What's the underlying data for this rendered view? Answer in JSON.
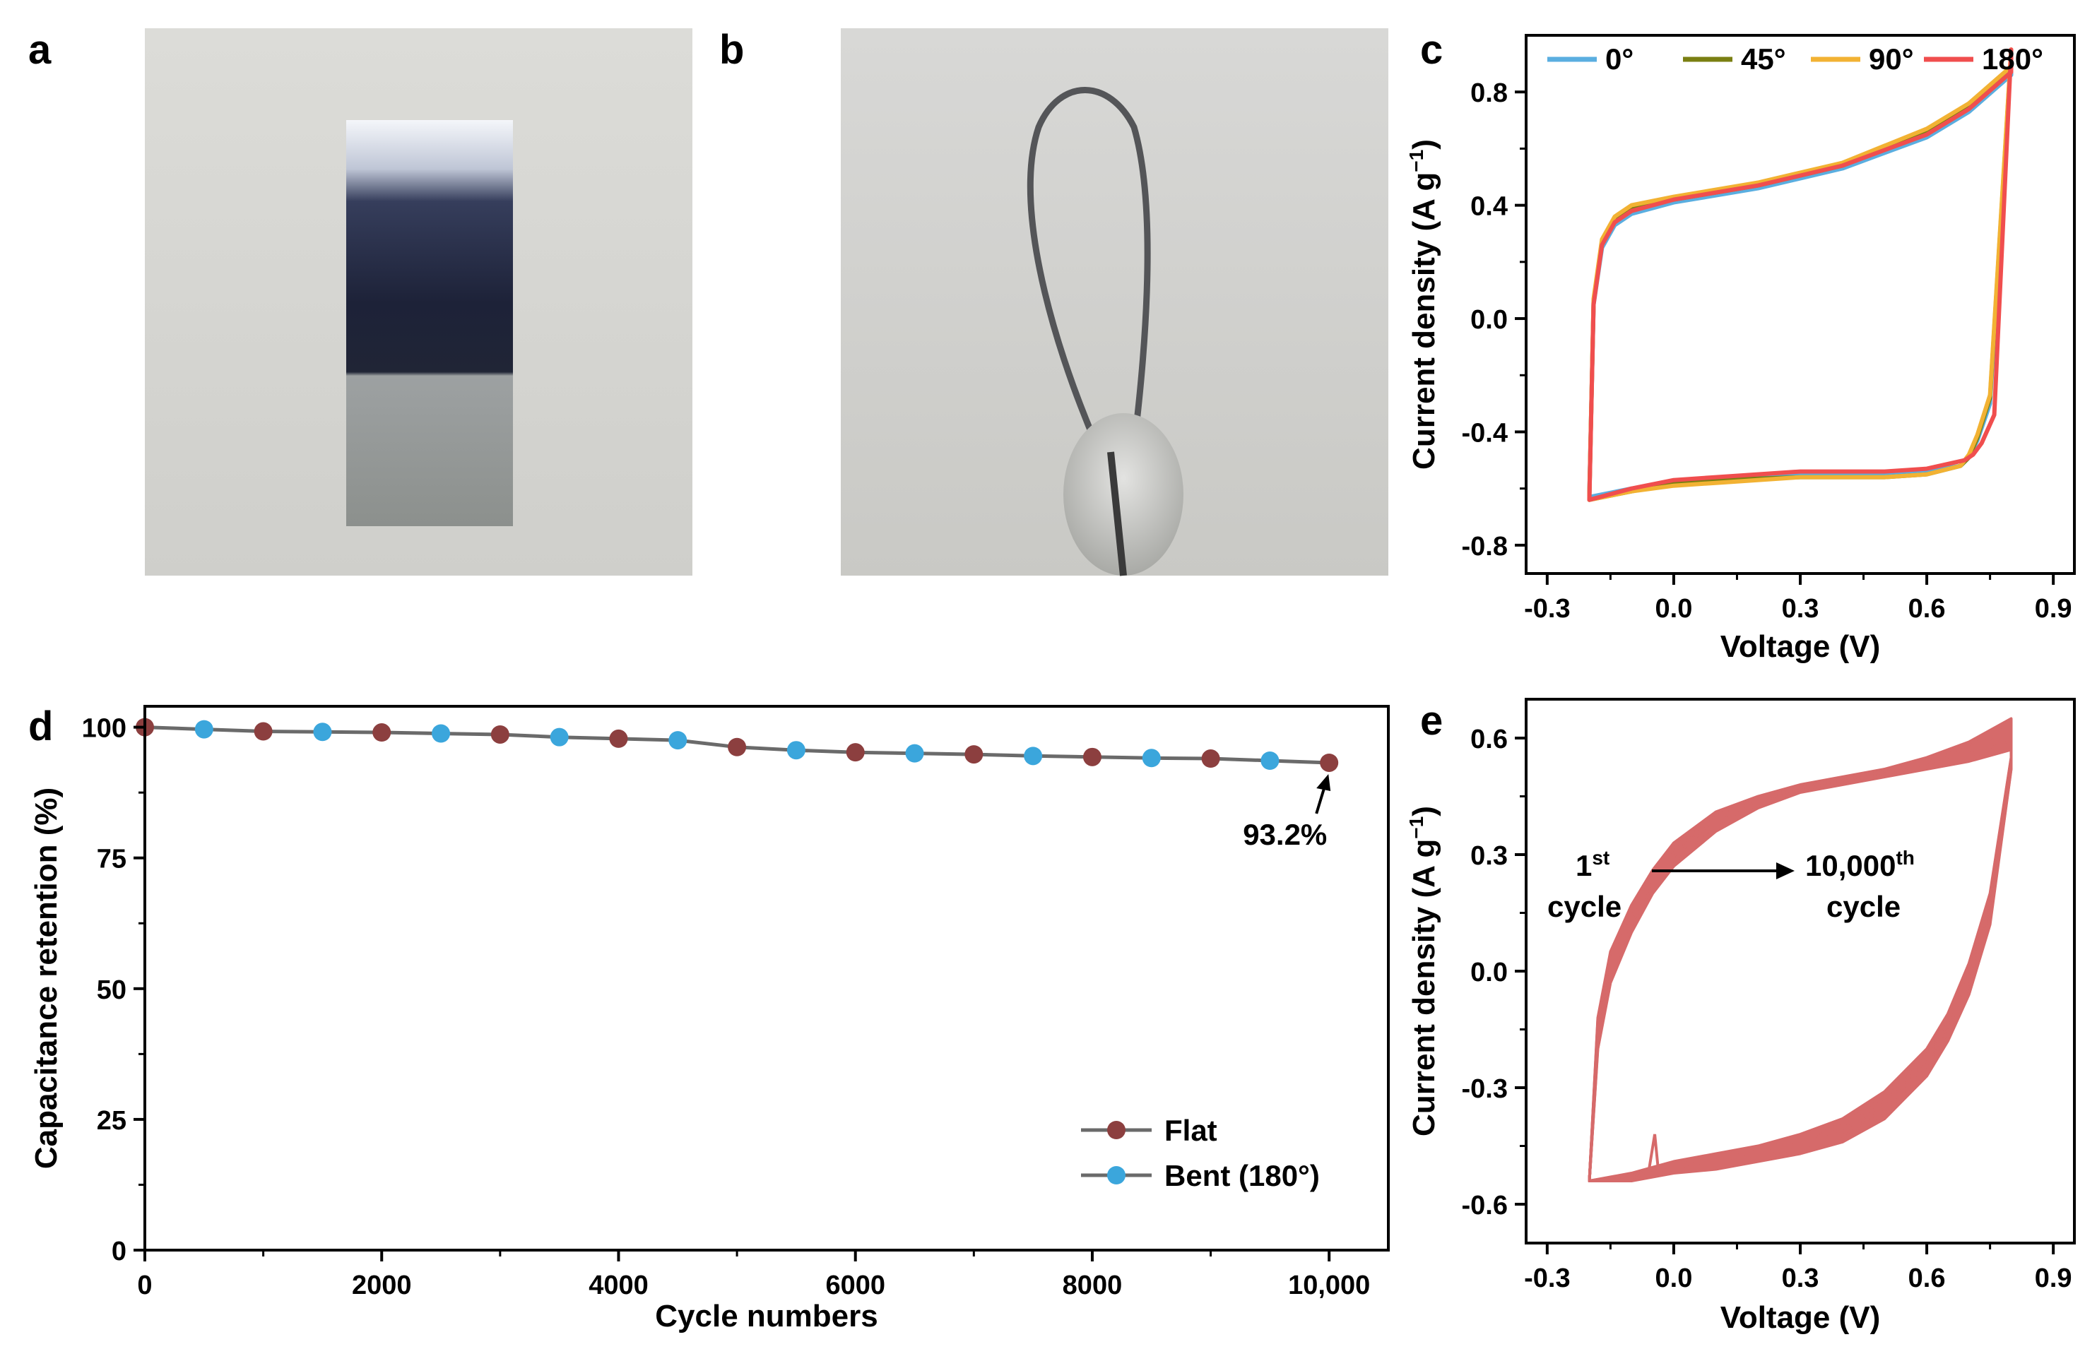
{
  "figure": {
    "panels": [
      {
        "id": "a",
        "label": "a"
      },
      {
        "id": "b",
        "label": "b"
      },
      {
        "id": "c",
        "label": "c"
      },
      {
        "id": "d",
        "label": "d"
      },
      {
        "id": "e",
        "label": "e"
      }
    ]
  },
  "colors": {
    "photo_bg": "#d3d3cf",
    "flat_marker": "#8c3f3f",
    "bent_marker": "#3ba6dc",
    "retention_line": "#6a6a6a",
    "cv_0": "#5aaee0",
    "cv_45": "#7a7f12",
    "cv_90": "#f2b233",
    "cv_180": "#f04e4e",
    "cycling_band": "#d66a6a"
  },
  "chart_data": [
    {
      "panel": "c",
      "type": "line",
      "xlabel": "Voltage (V)",
      "ylabel_main": "Current density (A g",
      "ylabel_sup": "−1",
      "ylabel_end": ")",
      "xlim": [
        -0.35,
        0.95
      ],
      "ylim": [
        -0.9,
        1.0
      ],
      "xticks": [
        -0.3,
        0.0,
        0.3,
        0.6,
        0.9
      ],
      "xtick_labels": [
        "-0.3",
        "0.0",
        "0.3",
        "0.6",
        "0.9"
      ],
      "yticks": [
        -0.8,
        -0.4,
        0.0,
        0.4,
        0.8
      ],
      "ytick_labels": [
        "-0.8",
        "-0.4",
        "0.0",
        "0.4",
        "0.8"
      ],
      "legend": [
        "0°",
        "45°",
        "90°",
        "180°"
      ],
      "series": [
        {
          "name": "0°",
          "color_key": "cv_0",
          "x": [
            -0.2,
            -0.19,
            -0.17,
            -0.14,
            -0.1,
            0.0,
            0.2,
            0.4,
            0.6,
            0.7,
            0.8,
            0.8,
            0.75,
            0.72,
            0.7,
            0.68,
            0.6,
            0.5,
            0.3,
            0.1,
            0.0,
            -0.1,
            -0.2
          ],
          "y": [
            -0.62,
            0.05,
            0.25,
            0.33,
            0.37,
            0.41,
            0.46,
            0.53,
            0.64,
            0.73,
            0.86,
            0.94,
            -0.3,
            -0.43,
            -0.49,
            -0.52,
            -0.54,
            -0.55,
            -0.55,
            -0.57,
            -0.58,
            -0.6,
            -0.63
          ]
        },
        {
          "name": "45°",
          "color_key": "cv_45",
          "x": [
            -0.2,
            -0.19,
            -0.17,
            -0.14,
            -0.1,
            0.0,
            0.2,
            0.4,
            0.6,
            0.7,
            0.8,
            0.8,
            0.75,
            0.72,
            0.7,
            0.68,
            0.6,
            0.5,
            0.3,
            0.1,
            0.0,
            -0.1,
            -0.2
          ],
          "y": [
            -0.63,
            0.06,
            0.27,
            0.35,
            0.39,
            0.42,
            0.47,
            0.54,
            0.66,
            0.75,
            0.88,
            0.94,
            -0.28,
            -0.42,
            -0.49,
            -0.52,
            -0.55,
            -0.56,
            -0.56,
            -0.57,
            -0.58,
            -0.61,
            -0.64
          ]
        },
        {
          "name": "90°",
          "color_key": "cv_90",
          "x": [
            -0.2,
            -0.19,
            -0.17,
            -0.14,
            -0.1,
            0.0,
            0.2,
            0.4,
            0.6,
            0.7,
            0.8,
            0.8,
            0.75,
            0.72,
            0.7,
            0.68,
            0.6,
            0.5,
            0.3,
            0.1,
            0.0,
            -0.1,
            -0.2
          ],
          "y": [
            -0.63,
            0.07,
            0.28,
            0.36,
            0.4,
            0.43,
            0.48,
            0.55,
            0.67,
            0.76,
            0.89,
            0.95,
            -0.27,
            -0.41,
            -0.48,
            -0.52,
            -0.55,
            -0.56,
            -0.56,
            -0.58,
            -0.59,
            -0.61,
            -0.64
          ]
        },
        {
          "name": "180°",
          "color_key": "cv_180",
          "x": [
            -0.2,
            -0.19,
            -0.17,
            -0.14,
            -0.1,
            0.0,
            0.2,
            0.4,
            0.6,
            0.7,
            0.8,
            0.8,
            0.76,
            0.73,
            0.71,
            0.69,
            0.6,
            0.5,
            0.3,
            0.1,
            0.0,
            -0.1,
            -0.2
          ],
          "y": [
            -0.64,
            0.05,
            0.26,
            0.34,
            0.38,
            0.42,
            0.47,
            0.54,
            0.65,
            0.74,
            0.87,
            0.95,
            -0.34,
            -0.44,
            -0.48,
            -0.5,
            -0.53,
            -0.54,
            -0.54,
            -0.56,
            -0.57,
            -0.6,
            -0.64
          ]
        }
      ]
    },
    {
      "panel": "d",
      "type": "line",
      "xlabel": "Cycle numbers",
      "ylabel": "Capacitance retention (%)",
      "xlim": [
        0,
        10500
      ],
      "ylim": [
        0,
        104
      ],
      "xticks": [
        0,
        2000,
        4000,
        6000,
        8000,
        10000
      ],
      "xtick_labels": [
        "0",
        "2000",
        "4000",
        "6000",
        "8000",
        "10,000"
      ],
      "yticks": [
        0,
        25,
        50,
        75,
        100
      ],
      "ytick_labels": [
        "0",
        "25",
        "50",
        "75",
        "100"
      ],
      "legend": [
        "Flat",
        "Bent (180°)"
      ],
      "annotation": "93.2%",
      "series": [
        {
          "name": "Flat",
          "color_key": "flat_marker",
          "x": [
            0,
            1000,
            2000,
            3000,
            4000,
            5000,
            6000,
            7000,
            8000,
            9000,
            10000
          ],
          "y": [
            100,
            99.2,
            99.0,
            98.6,
            97.8,
            96.2,
            95.2,
            94.8,
            94.3,
            94.0,
            93.2
          ]
        },
        {
          "name": "Bent (180°)",
          "color_key": "bent_marker",
          "x": [
            500,
            1500,
            2500,
            3500,
            4500,
            5500,
            6500,
            7500,
            8500,
            9500
          ],
          "y": [
            99.6,
            99.1,
            98.8,
            98.1,
            97.5,
            95.6,
            95.0,
            94.5,
            94.1,
            93.6
          ]
        }
      ]
    },
    {
      "panel": "e",
      "type": "area",
      "xlabel": "Voltage (V)",
      "ylabel_main": "Current density (A g",
      "ylabel_sup": "−1",
      "ylabel_end": ")",
      "xlim": [
        -0.35,
        0.95
      ],
      "ylim": [
        -0.7,
        0.7
      ],
      "xticks": [
        -0.3,
        0.0,
        0.3,
        0.6,
        0.9
      ],
      "xtick_labels": [
        "-0.3",
        "0.0",
        "0.3",
        "0.6",
        "0.9"
      ],
      "yticks": [
        -0.6,
        -0.3,
        0.0,
        0.3,
        0.6
      ],
      "ytick_labels": [
        "-0.6",
        "-0.3",
        "0.0",
        "0.3",
        "0.6"
      ],
      "annotation_start_base": "1",
      "annotation_start_sup": "st",
      "annotation_start_line2": "cycle",
      "annotation_end_base": "10,000",
      "annotation_end_sup": "th",
      "annotation_end_line2": "cycle",
      "series": [
        {
          "name": "1st cycle",
          "color_key": "cycling_band",
          "x": [
            -0.2,
            -0.18,
            -0.15,
            -0.1,
            -0.05,
            0.0,
            0.1,
            0.2,
            0.3,
            0.4,
            0.5,
            0.6,
            0.7,
            0.8,
            0.8,
            0.75,
            0.7,
            0.65,
            0.6,
            0.5,
            0.4,
            0.3,
            0.2,
            0.1,
            0.0,
            -0.1,
            -0.2
          ],
          "y": [
            -0.54,
            -0.12,
            0.05,
            0.17,
            0.26,
            0.33,
            0.41,
            0.45,
            0.48,
            0.5,
            0.52,
            0.55,
            0.59,
            0.65,
            0.55,
            0.2,
            0.02,
            -0.11,
            -0.2,
            -0.31,
            -0.38,
            -0.42,
            -0.45,
            -0.47,
            -0.49,
            -0.52,
            -0.54
          ]
        },
        {
          "name": "10,000th cycle",
          "color_key": "cycling_band",
          "x": [
            -0.2,
            -0.18,
            -0.15,
            -0.1,
            -0.05,
            0.0,
            0.1,
            0.2,
            0.3,
            0.4,
            0.5,
            0.6,
            0.7,
            0.8,
            0.8,
            0.75,
            0.7,
            0.65,
            0.6,
            0.5,
            0.4,
            0.3,
            0.2,
            0.1,
            0.0,
            -0.1,
            -0.2
          ],
          "y": [
            -0.54,
            -0.2,
            -0.03,
            0.1,
            0.2,
            0.27,
            0.36,
            0.42,
            0.46,
            0.48,
            0.5,
            0.52,
            0.54,
            0.57,
            0.52,
            0.12,
            -0.06,
            -0.18,
            -0.27,
            -0.38,
            -0.44,
            -0.47,
            -0.49,
            -0.51,
            -0.52,
            -0.54,
            -0.54
          ]
        }
      ]
    }
  ]
}
